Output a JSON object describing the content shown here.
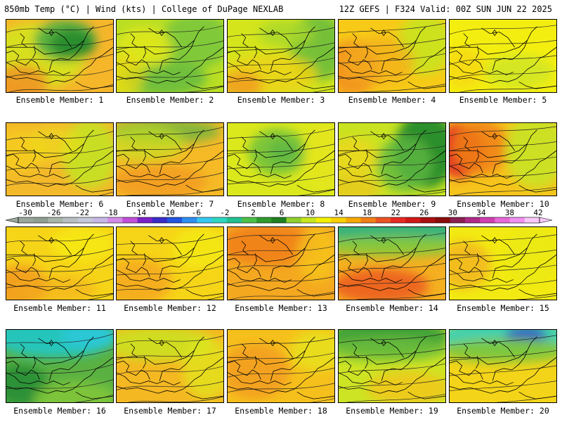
{
  "header": {
    "left": "850mb Temp (°C) | Wind (kts) | College of DuPage NEXLAB",
    "right": "12Z GEFS | F324 Valid: 00Z SUN JUN 22 2025"
  },
  "colorbar": {
    "labels": [
      "-30",
      "-26",
      "-22",
      "-18",
      "-14",
      "-10",
      "-6",
      "-2",
      "2",
      "6",
      "10",
      "14",
      "18",
      "22",
      "26",
      "30",
      "34",
      "38",
      "42"
    ],
    "colors": [
      "#9aa79c",
      "#8f9f92",
      "#a8b5a9",
      "#b8bfc3",
      "#c4c8d8",
      "#c7b7e6",
      "#d28be6",
      "#c24fd8",
      "#7a22c8",
      "#3a2cc8",
      "#2255e0",
      "#2f8ff0",
      "#35c8f0",
      "#2ed6c0",
      "#22c090",
      "#4cc048",
      "#2f9a2e",
      "#1f7f20",
      "#8fcf2e",
      "#c8e61e",
      "#f2f000",
      "#f8d000",
      "#f6a800",
      "#f07e18",
      "#ea5422",
      "#e62a24",
      "#d01818",
      "#aa1010",
      "#8a0c0c",
      "#8a2050",
      "#b02a88",
      "#d040b0",
      "#e868d8",
      "#f090f0",
      "#f8c8f8"
    ]
  },
  "members": [
    {
      "label": "Ensemble Member: 1",
      "base": "#f6b62a",
      "blobs": [
        [
          45,
          52,
          70,
          48,
          "#d6e11c",
          0.95
        ],
        [
          85,
          30,
          45,
          30,
          "#55b043",
          0.95
        ],
        [
          95,
          35,
          32,
          22,
          "#238a2d",
          0.9
        ],
        [
          20,
          90,
          40,
          25,
          "#f08e20",
          0.8
        ]
      ]
    },
    {
      "label": "Ensemble Member: 2",
      "base": "#b9de24",
      "blobs": [
        [
          115,
          30,
          50,
          40,
          "#7ac73a",
          0.9
        ],
        [
          70,
          85,
          60,
          25,
          "#5fb842",
          0.8
        ],
        [
          40,
          40,
          40,
          30,
          "#e3e81a",
          0.8
        ],
        [
          10,
          80,
          30,
          30,
          "#f0d814",
          0.7
        ]
      ]
    },
    {
      "label": "Ensemble Member: 3",
      "base": "#d4e51c",
      "blobs": [
        [
          130,
          40,
          40,
          50,
          "#6cbd3b",
          0.9
        ],
        [
          60,
          80,
          70,
          30,
          "#ecd414",
          0.85
        ],
        [
          20,
          95,
          30,
          20,
          "#f29a1e",
          0.8
        ],
        [
          85,
          20,
          40,
          20,
          "#a8d72c",
          0.8
        ]
      ]
    },
    {
      "label": "Ensemble Member: 4",
      "base": "#f7ca18",
      "blobs": [
        [
          125,
          35,
          40,
          45,
          "#c9e320",
          0.9
        ],
        [
          20,
          70,
          40,
          40,
          "#f2921e",
          0.9
        ],
        [
          60,
          60,
          50,
          35,
          "#f4ae20",
          0.7
        ]
      ]
    },
    {
      "label": "Ensemble Member: 5",
      "base": "#f4ee10",
      "blobs": [
        [
          100,
          75,
          50,
          25,
          "#c8e426",
          0.7
        ],
        [
          20,
          70,
          30,
          30,
          "#f6d018",
          0.6
        ]
      ]
    },
    {
      "label": "Ensemble Member: 6",
      "base": "#f3b92a",
      "blobs": [
        [
          120,
          45,
          40,
          50,
          "#c7e022",
          0.95
        ],
        [
          20,
          40,
          40,
          30,
          "#f6d018",
          0.7
        ],
        [
          70,
          30,
          40,
          25,
          "#ecde1a",
          0.6
        ]
      ]
    },
    {
      "label": "Ensemble Member: 7",
      "base": "#f5ba26",
      "blobs": [
        [
          70,
          12,
          80,
          18,
          "#6ab43e",
          0.8
        ],
        [
          40,
          30,
          60,
          25,
          "#c6e022",
          0.7
        ],
        [
          60,
          85,
          70,
          25,
          "#f29a1e",
          0.8
        ]
      ]
    },
    {
      "label": "Ensemble Member: 8",
      "base": "#dbe81c",
      "blobs": [
        [
          72,
          42,
          42,
          34,
          "#79c43a",
          0.95
        ],
        [
          80,
          42,
          22,
          18,
          "#5fb842",
          0.9
        ],
        [
          140,
          50,
          30,
          50,
          "#e7e619",
          0.7
        ]
      ]
    },
    {
      "label": "Ensemble Member: 9",
      "base": "#c9e322",
      "blobs": [
        [
          125,
          40,
          45,
          55,
          "#238a2d",
          0.95
        ],
        [
          95,
          60,
          40,
          40,
          "#5fb842",
          0.8
        ],
        [
          20,
          50,
          35,
          30,
          "#f4d418",
          0.7
        ],
        [
          20,
          95,
          40,
          20,
          "#f0c418",
          0.7
        ]
      ]
    },
    {
      "label": "Ensemble Member: 10",
      "base": "#f6c41c",
      "blobs": [
        [
          15,
          40,
          35,
          40,
          "#e23422",
          0.95
        ],
        [
          45,
          35,
          40,
          40,
          "#f08018",
          0.85
        ],
        [
          125,
          40,
          45,
          55,
          "#c9e322",
          0.9
        ]
      ]
    },
    {
      "label": "Ensemble Member: 11",
      "base": "#f6d418",
      "blobs": [
        [
          20,
          85,
          40,
          30,
          "#f29a1e",
          0.9
        ],
        [
          110,
          25,
          45,
          25,
          "#f6ee10",
          0.7
        ],
        [
          70,
          90,
          60,
          20,
          "#f4ae20",
          0.6
        ]
      ]
    },
    {
      "label": "Ensemble Member: 12",
      "base": "#f6d418",
      "blobs": [
        [
          30,
          80,
          50,
          35,
          "#f4a820",
          0.85
        ],
        [
          120,
          30,
          40,
          30,
          "#f3ee12",
          0.7
        ]
      ]
    },
    {
      "label": "Ensemble Member: 13",
      "base": "#f4a820",
      "blobs": [
        [
          60,
          25,
          70,
          30,
          "#f07e18",
          0.85
        ],
        [
          130,
          40,
          30,
          40,
          "#f6c41c",
          0.8
        ]
      ]
    },
    {
      "label": "Ensemble Member: 14",
      "base": "#f4b020",
      "blobs": [
        [
          80,
          5,
          110,
          22,
          "#2bb37e",
          0.95
        ],
        [
          80,
          28,
          110,
          15,
          "#86c93a",
          0.9
        ],
        [
          60,
          85,
          70,
          25,
          "#ec5a22",
          0.85
        ]
      ]
    },
    {
      "label": "Ensemble Member: 15",
      "base": "#f2ea12",
      "blobs": [
        [
          20,
          55,
          40,
          35,
          "#f2b220",
          0.8
        ],
        [
          120,
          40,
          40,
          40,
          "#e8e816",
          0.6
        ]
      ]
    },
    {
      "label": "Ensemble Member: 16",
      "base": "#5ab142",
      "blobs": [
        [
          70,
          10,
          90,
          30,
          "#23c6c2",
          0.95
        ],
        [
          120,
          8,
          40,
          20,
          "#2ec8d8",
          0.9
        ],
        [
          20,
          80,
          40,
          30,
          "#1e8a34",
          0.8
        ],
        [
          100,
          100,
          60,
          25,
          "#86c93a",
          0.8
        ]
      ]
    },
    {
      "label": "Ensemble Member: 17",
      "base": "#f4b822",
      "blobs": [
        [
          60,
          20,
          80,
          25,
          "#c9e322",
          0.85
        ],
        [
          130,
          55,
          35,
          45,
          "#dfe81c",
          0.7
        ]
      ]
    },
    {
      "label": "Ensemble Member: 18",
      "base": "#f6c01c",
      "blobs": [
        [
          40,
          60,
          50,
          40,
          "#f29a1e",
          0.8
        ],
        [
          130,
          30,
          40,
          30,
          "#e4e81a",
          0.7
        ]
      ]
    },
    {
      "label": "Ensemble Member: 19",
      "base": "#cde424",
      "blobs": [
        [
          70,
          10,
          90,
          25,
          "#2f9a3a",
          0.9
        ],
        [
          70,
          28,
          90,
          18,
          "#6cbd3b",
          0.85
        ],
        [
          100,
          85,
          60,
          25,
          "#f4c41c",
          0.8
        ]
      ]
    },
    {
      "label": "Ensemble Member: 20",
      "base": "#f4d418",
      "blobs": [
        [
          80,
          10,
          100,
          25,
          "#2ad0c0",
          0.9
        ],
        [
          110,
          8,
          30,
          12,
          "#2c44c8",
          0.9
        ],
        [
          80,
          30,
          100,
          18,
          "#7fc63a",
          0.9
        ]
      ]
    }
  ]
}
